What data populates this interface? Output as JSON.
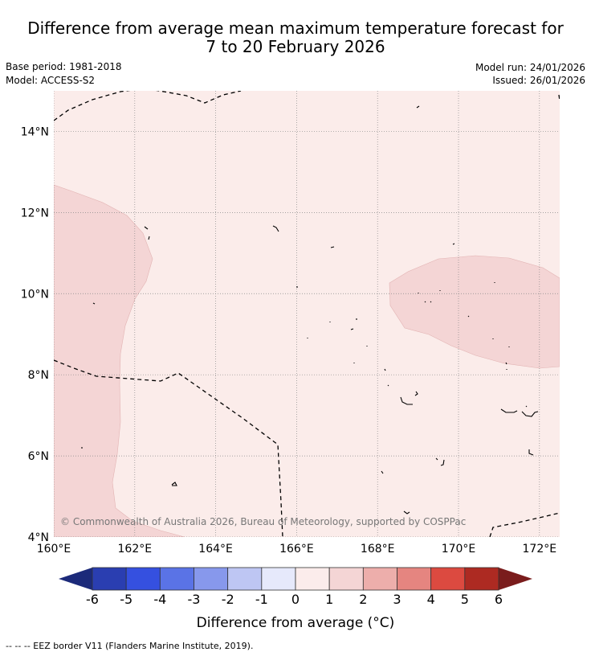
{
  "title": {
    "line1": "Difference from average mean maximum temperature forecast for",
    "line2": "7 to 20 February 2026"
  },
  "meta": {
    "base_period": "Base period: 1981-2018",
    "model": "Model: ACCESS-S2",
    "model_run": "Model run: 24/01/2026",
    "issued": "Issued: 26/01/2026"
  },
  "map": {
    "lat_labels": [
      "14°N",
      "12°N",
      "10°N",
      "8°N",
      "6°N",
      "4°N"
    ],
    "lon_labels": [
      "160°E",
      "162°E",
      "164°E",
      "166°E",
      "168°E",
      "170°E",
      "172°E"
    ],
    "lat_values": [
      14,
      12,
      10,
      8,
      6,
      4
    ],
    "lon_values": [
      160,
      162,
      164,
      166,
      168,
      170,
      172
    ],
    "lon_range": [
      160,
      172.5
    ],
    "lat_range": [
      4,
      15
    ],
    "copyright": "© Commonwealth of Australia 2026, Bureau of Meteorology, supported by COSPPac",
    "background_category": "0 to 1 °C",
    "highlight_category": "1 to 2 °C"
  },
  "colorbar": {
    "labels": [
      "-6",
      "-5",
      "-4",
      "-3",
      "-2",
      "-1",
      "0",
      "1",
      "2",
      "3",
      "4",
      "5",
      "6"
    ],
    "colors": [
      "#2a3eb1",
      "#3550e0",
      "#5a73e6",
      "#8798ec",
      "#bec6f3",
      "#e6e9fb",
      "#fbeceb",
      "#f4d5d5",
      "#edaeab",
      "#e58580",
      "#dc4a40",
      "#ad2a22"
    ],
    "under_color": "#1c2a7a",
    "over_color": "#7a1c1c",
    "label": "Difference from average (°C)"
  },
  "footer": "-- -- -- EEZ border V11 (Flanders Marine Institute, 2019)."
}
